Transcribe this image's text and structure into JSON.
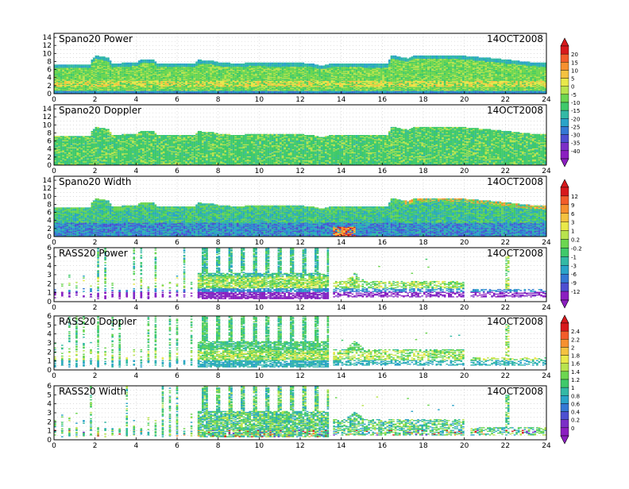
{
  "chart_data": [
    {
      "type": "heatmap",
      "title": "Spano20 Power",
      "date_label": "14OCT2008",
      "x_ticks": [
        "0",
        "2",
        "4",
        "6",
        "8",
        "10",
        "12",
        "14",
        "16",
        "18",
        "20",
        "22",
        "24"
      ],
      "y_ticks": [
        "0",
        "2",
        "4",
        "6",
        "8",
        "10",
        "12",
        "14"
      ],
      "xlim": [
        0,
        24
      ],
      "ylim": [
        0,
        15
      ],
      "grid": true,
      "top_profile": [
        [
          0,
          7.3
        ],
        [
          1.7,
          7.3
        ],
        [
          1.8,
          8.5
        ],
        [
          2.0,
          9.5
        ],
        [
          2.6,
          9.0
        ],
        [
          2.8,
          7.5
        ],
        [
          4.0,
          7.8
        ],
        [
          4.2,
          8.6
        ],
        [
          4.8,
          8.6
        ],
        [
          5.0,
          7.6
        ],
        [
          6.8,
          7.6
        ],
        [
          7.0,
          8.4
        ],
        [
          7.6,
          8.3
        ],
        [
          8.0,
          7.8
        ],
        [
          9.0,
          7.5
        ],
        [
          9.5,
          7.8
        ],
        [
          12.5,
          7.6
        ],
        [
          13.0,
          7.0
        ],
        [
          13.5,
          7.6
        ],
        [
          15.0,
          7.5
        ],
        [
          16.2,
          7.4
        ],
        [
          16.4,
          9.6
        ],
        [
          17.2,
          8.8
        ],
        [
          17.5,
          9.6
        ],
        [
          19.5,
          9.6
        ],
        [
          21.0,
          9.0
        ],
        [
          23.5,
          7.7
        ],
        [
          24,
          7.7
        ]
      ],
      "base_value_range": [
        -30,
        10
      ]
    },
    {
      "type": "heatmap",
      "title": "Spano20 Doppler",
      "date_label": "14OCT2008",
      "x_ticks": [
        "0",
        "2",
        "4",
        "6",
        "8",
        "10",
        "12",
        "14",
        "16",
        "18",
        "20",
        "22",
        "24"
      ],
      "y_ticks": [
        "0",
        "2",
        "4",
        "6",
        "8",
        "10",
        "12",
        "14"
      ],
      "xlim": [
        0,
        24
      ],
      "ylim": [
        0,
        15
      ],
      "grid": true,
      "top_profile": [
        [
          0,
          7.3
        ],
        [
          1.7,
          7.3
        ],
        [
          1.8,
          8.5
        ],
        [
          2.0,
          9.5
        ],
        [
          2.6,
          9.0
        ],
        [
          2.8,
          7.5
        ],
        [
          4.0,
          7.8
        ],
        [
          4.2,
          8.6
        ],
        [
          4.8,
          8.6
        ],
        [
          5.0,
          7.6
        ],
        [
          6.8,
          7.6
        ],
        [
          7.0,
          8.4
        ],
        [
          7.6,
          8.3
        ],
        [
          8.0,
          7.8
        ],
        [
          9.0,
          7.5
        ],
        [
          9.5,
          7.8
        ],
        [
          12.5,
          7.6
        ],
        [
          13.0,
          7.0
        ],
        [
          13.5,
          7.6
        ],
        [
          15.0,
          7.5
        ],
        [
          16.2,
          7.4
        ],
        [
          16.4,
          9.6
        ],
        [
          17.2,
          8.8
        ],
        [
          17.5,
          9.6
        ],
        [
          19.5,
          9.6
        ],
        [
          21.0,
          9.0
        ],
        [
          23.5,
          7.7
        ],
        [
          24,
          7.7
        ]
      ],
      "base_value_range": [
        -5,
        5
      ]
    },
    {
      "type": "heatmap",
      "title": "Spano20 Width",
      "date_label": "14OCT2008",
      "x_ticks": [
        "0",
        "2",
        "4",
        "6",
        "8",
        "10",
        "12",
        "14",
        "16",
        "18",
        "20",
        "22",
        "24"
      ],
      "y_ticks": [
        "0",
        "2",
        "4",
        "6",
        "8",
        "10",
        "12",
        "14"
      ],
      "xlim": [
        0,
        24
      ],
      "ylim": [
        0,
        15
      ],
      "grid": true,
      "top_profile": [
        [
          0,
          7.3
        ],
        [
          1.7,
          7.3
        ],
        [
          1.8,
          8.5
        ],
        [
          2.0,
          9.5
        ],
        [
          2.6,
          9.0
        ],
        [
          2.8,
          7.5
        ],
        [
          4.0,
          7.8
        ],
        [
          4.2,
          8.6
        ],
        [
          4.8,
          8.6
        ],
        [
          5.0,
          7.6
        ],
        [
          6.8,
          7.6
        ],
        [
          7.0,
          8.4
        ],
        [
          7.6,
          8.3
        ],
        [
          8.0,
          7.8
        ],
        [
          9.0,
          7.5
        ],
        [
          9.5,
          7.8
        ],
        [
          12.5,
          7.6
        ],
        [
          13.0,
          7.0
        ],
        [
          13.5,
          7.6
        ],
        [
          15.0,
          7.5
        ],
        [
          16.2,
          7.4
        ],
        [
          16.4,
          9.6
        ],
        [
          17.2,
          8.8
        ],
        [
          17.5,
          9.6
        ],
        [
          19.5,
          9.6
        ],
        [
          21.0,
          9.0
        ],
        [
          23.5,
          7.7
        ],
        [
          24,
          7.7
        ]
      ],
      "base_value_range": [
        -1,
        3
      ]
    },
    {
      "type": "heatmap",
      "title": "RASS20 Power",
      "date_label": "14OCT2008",
      "x_ticks": [
        "0",
        "2",
        "4",
        "6",
        "8",
        "10",
        "12",
        "14",
        "16",
        "18",
        "20",
        "22",
        "24"
      ],
      "y_ticks": [
        "0",
        "1",
        "2",
        "3",
        "4",
        "5",
        "6"
      ],
      "xlim": [
        0,
        24
      ],
      "ylim": [
        0,
        6
      ],
      "grid": true,
      "dense_x_range": [
        7,
        13.3
      ],
      "sparse_x_range": [
        0,
        7
      ],
      "late_x_range": [
        13.5,
        20
      ],
      "base_value_range": [
        -9,
        3
      ]
    },
    {
      "type": "heatmap",
      "title": "RASS20 Doppler",
      "date_label": "14OCT2008",
      "x_ticks": [
        "0",
        "2",
        "4",
        "6",
        "8",
        "10",
        "12",
        "14",
        "16",
        "18",
        "20",
        "22",
        "24"
      ],
      "y_ticks": [
        "0",
        "1",
        "2",
        "3",
        "4",
        "5",
        "6"
      ],
      "xlim": [
        0,
        24
      ],
      "ylim": [
        0,
        6
      ],
      "grid": true,
      "dense_x_range": [
        7,
        13.3
      ],
      "sparse_x_range": [
        0,
        7
      ],
      "late_x_range": [
        13.5,
        20
      ],
      "base_value_range": [
        0.8,
        1.6
      ]
    },
    {
      "type": "heatmap",
      "title": "RASS20 Width",
      "date_label": "14OCT2008",
      "x_ticks": [
        "0",
        "2",
        "4",
        "6",
        "8",
        "10",
        "12",
        "14",
        "16",
        "18",
        "20",
        "22",
        "24"
      ],
      "y_ticks": [
        "0",
        "1",
        "2",
        "3",
        "4",
        "5",
        "6"
      ],
      "xlim": [
        0,
        24
      ],
      "ylim": [
        0,
        6
      ],
      "grid": true,
      "dense_x_range": [
        7,
        13.3
      ],
      "sparse_x_range": [
        0,
        7
      ],
      "late_x_range": [
        13.5,
        20
      ],
      "base_value_range": [
        0.6,
        1.4
      ]
    }
  ],
  "colorbars": [
    {
      "labels": [
        "20",
        "15",
        "10",
        "5",
        "0",
        "-5",
        "-10",
        "-15",
        "-20",
        "-25",
        "-30",
        "-35",
        "-40"
      ],
      "colors": [
        "#d7191c",
        "#f25c2a",
        "#f6902f",
        "#f4c240",
        "#e9e84a",
        "#b8e34e",
        "#6cd650",
        "#3fc96a",
        "#33b9a5",
        "#2aa3c8",
        "#3478d4",
        "#4d4fd1",
        "#7b2fc7",
        "#8b1ec0"
      ]
    },
    {
      "labels": [
        "12",
        "9",
        "6",
        "3",
        "1",
        "0.2",
        "-0.2",
        "-1",
        "-3",
        "-6",
        "-9",
        "-12"
      ],
      "colors": [
        "#d7191c",
        "#f25c2a",
        "#f6902f",
        "#f4c240",
        "#e9e84a",
        "#b8e34e",
        "#6cd650",
        "#3fc96a",
        "#33b9a5",
        "#2aa3c8",
        "#3478d4",
        "#4d4fd1",
        "#8b1ec0"
      ]
    },
    {
      "labels": [
        "2.4",
        "2.2",
        "2",
        "1.8",
        "1.6",
        "1.4",
        "1.2",
        "1",
        "0.8",
        "0.6",
        "0.4",
        "0.2",
        "0"
      ],
      "colors": [
        "#d7191c",
        "#f25c2a",
        "#f6902f",
        "#f4c240",
        "#e9e84a",
        "#b8e34e",
        "#6cd650",
        "#3fc96a",
        "#33b9a5",
        "#2aa3c8",
        "#3478d4",
        "#4d4fd1",
        "#7b2fc7",
        "#8b1ec0"
      ]
    }
  ]
}
